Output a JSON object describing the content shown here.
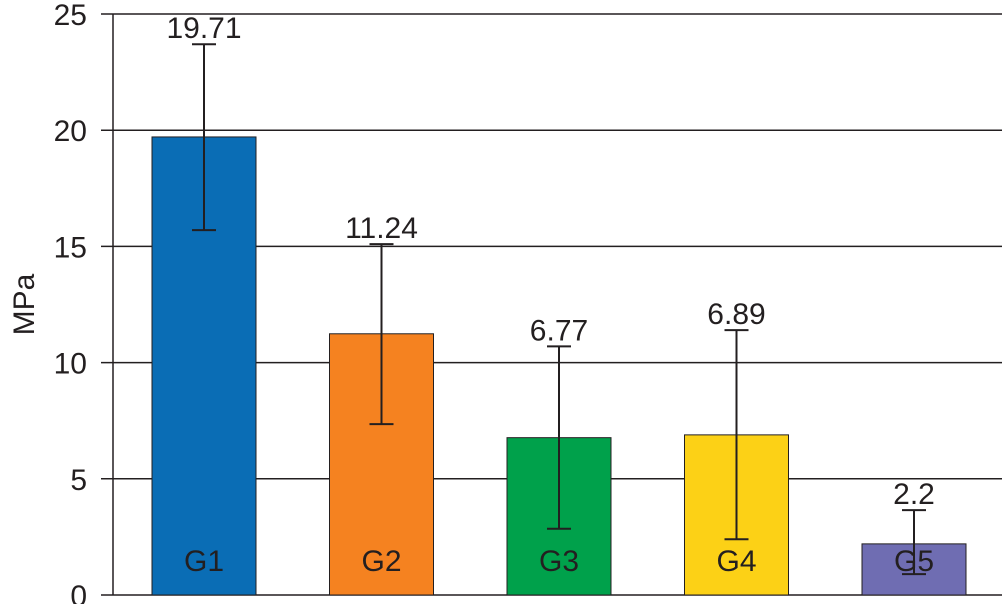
{
  "chart_data": {
    "type": "bar",
    "ylabel": "MPa",
    "ylim": [
      0,
      25
    ],
    "yticks": [
      0,
      5,
      10,
      15,
      20,
      25
    ],
    "grid": true,
    "categories": [
      "G1",
      "G2",
      "G3",
      "G4",
      "G5"
    ],
    "values": [
      19.71,
      11.24,
      6.77,
      6.89,
      2.2
    ],
    "value_labels": [
      "19.71",
      "11.24",
      "6.77",
      "6.89",
      "2.2"
    ],
    "error_bars": [
      {
        "low": 15.7,
        "high": 23.7
      },
      {
        "low": 7.35,
        "high": 15.1
      },
      {
        "low": 2.85,
        "high": 10.7
      },
      {
        "low": 2.4,
        "high": 11.4
      },
      {
        "low": 0.9,
        "high": 3.65
      }
    ],
    "colors": [
      "#0a6db5",
      "#f58220",
      "#00a14b",
      "#fcd116",
      "#6f6db2"
    ]
  }
}
